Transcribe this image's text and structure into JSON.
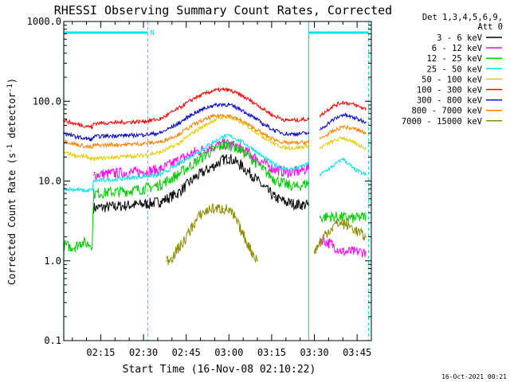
{
  "chart_data": {
    "type": "line",
    "title": "RHESSI Observing Summary Count Rates, Corrected",
    "xlabel": "Start Time (16-Nov-08 02:10:22)",
    "ylabel_main": "Corrected Count Rate (s",
    "ylabel_sup1": "-1",
    "ylabel_mid": " detector",
    "ylabel_sup2": "-1",
    "ylabel_end": ")",
    "y_scale": "log",
    "ylim": [
      0.1,
      1000
    ],
    "y_ticks": [
      {
        "v": 0.1,
        "label": "0.1"
      },
      {
        "v": 1,
        "label": "1.0"
      },
      {
        "v": 10,
        "label": "10.0"
      },
      {
        "v": 100,
        "label": "100.0"
      },
      {
        "v": 1000,
        "label": "1000.0"
      }
    ],
    "xlim": [
      122,
      230
    ],
    "x_ticks": [
      {
        "t": 135,
        "label": "02:15"
      },
      {
        "t": 150,
        "label": "02:30"
      },
      {
        "t": 165,
        "label": "02:45"
      },
      {
        "t": 180,
        "label": "03:00"
      },
      {
        "t": 195,
        "label": "03:15"
      },
      {
        "t": 210,
        "label": "03:30"
      },
      {
        "t": 225,
        "label": "03:45"
      }
    ],
    "legend_header": [
      "Det 1,3,4,5,6,9,",
      "Att 0"
    ],
    "legend_position": "right",
    "series": [
      {
        "name": "3 - 6 keV",
        "color": "#000000",
        "x": [
          122,
          132,
          132.5,
          140,
          146,
          150,
          156,
          162,
          168,
          174,
          178,
          180,
          184,
          188,
          192,
          196,
          200,
          204,
          208,
          208.5,
          212,
          216,
          220,
          224,
          228
        ],
        "values": [
          null,
          null,
          4.6,
          4.8,
          5.0,
          5.1,
          5.5,
          7.0,
          11,
          15,
          18.5,
          19.5,
          16,
          12,
          8.5,
          6.3,
          5.4,
          5.1,
          5.0,
          null,
          null,
          null,
          null,
          null,
          null
        ]
      },
      {
        "name": "6 - 12 keV",
        "color": "#ff00ff",
        "x": [
          122,
          132,
          132.5,
          140,
          146,
          150,
          156,
          162,
          168,
          174,
          178,
          180,
          184,
          188,
          192,
          196,
          200,
          204,
          208,
          208.5,
          212,
          216,
          220,
          224,
          228
        ],
        "values": [
          null,
          null,
          12,
          12.5,
          12.8,
          13,
          14,
          18,
          23,
          27,
          29,
          29,
          26,
          21,
          17,
          14,
          13,
          13,
          14.5,
          null,
          1.9,
          1.6,
          1.3,
          1.3,
          1.3
        ]
      },
      {
        "name": "12 - 25 keV",
        "color": "#00cc00",
        "x": [
          122,
          124,
          126,
          128,
          132,
          132.5,
          140,
          146,
          150,
          156,
          162,
          168,
          174,
          178,
          180,
          184,
          188,
          192,
          196,
          200,
          204,
          208,
          208.5,
          212,
          216,
          220,
          224,
          228
        ],
        "values": [
          1.6,
          1.5,
          1.5,
          1.7,
          1.6,
          7,
          7.3,
          7.6,
          8,
          9,
          12,
          17,
          24,
          28,
          28.5,
          25,
          19,
          14,
          10.5,
          9,
          8.5,
          9.5,
          null,
          3.5,
          3.6,
          3.5,
          3.4,
          3.6
        ]
      },
      {
        "name": "25 - 50 keV",
        "color": "#00e5e5",
        "x": [
          122,
          126,
          130,
          132,
          132.5,
          140,
          146,
          150,
          156,
          162,
          168,
          174,
          178,
          180,
          184,
          188,
          192,
          196,
          200,
          204,
          208,
          208.5,
          212,
          216,
          220,
          224,
          228
        ],
        "values": [
          8,
          7.8,
          7.5,
          7.8,
          10,
          10.5,
          11,
          11.5,
          12,
          16,
          22,
          30,
          36,
          37,
          32,
          26,
          20,
          16,
          14,
          14.5,
          16.5,
          null,
          12,
          15,
          19,
          14,
          12
        ]
      },
      {
        "name": "50 - 100 keV",
        "color": "#e5cc00",
        "x": [
          122,
          126,
          130,
          132,
          132.5,
          140,
          146,
          150,
          156,
          162,
          168,
          174,
          178,
          180,
          184,
          188,
          192,
          196,
          200,
          204,
          208,
          208.5,
          212,
          216,
          220,
          224,
          228
        ],
        "values": [
          23,
          21,
          20,
          19,
          19,
          20,
          20.5,
          21,
          23,
          29,
          42,
          56,
          64,
          63,
          55,
          45,
          36,
          29,
          26,
          26,
          28,
          null,
          26,
          31,
          35,
          30,
          26
        ]
      },
      {
        "name": "100 - 300 keV",
        "color": "#ff0000",
        "x": [
          122,
          126,
          130,
          132,
          132.5,
          140,
          146,
          150,
          156,
          162,
          168,
          174,
          178,
          180,
          184,
          188,
          192,
          196,
          200,
          204,
          208,
          208.5,
          212,
          216,
          220,
          224,
          228
        ],
        "values": [
          58,
          52,
          49,
          47,
          53,
          54,
          55,
          56,
          60,
          80,
          110,
          135,
          140,
          138,
          120,
          100,
          80,
          65,
          58,
          58,
          60,
          null,
          66,
          85,
          98,
          90,
          80
        ]
      },
      {
        "name": "300 - 800 keV",
        "color": "#0000cc",
        "x": [
          122,
          126,
          130,
          132,
          132.5,
          140,
          146,
          150,
          156,
          162,
          168,
          174,
          178,
          180,
          184,
          188,
          192,
          196,
          200,
          204,
          208,
          208.5,
          212,
          216,
          220,
          224,
          228
        ],
        "values": [
          40,
          36,
          34,
          33,
          36,
          37,
          37.5,
          38,
          40,
          52,
          72,
          88,
          92,
          90,
          80,
          65,
          52,
          43,
          39,
          39,
          40,
          null,
          44,
          57,
          68,
          62,
          55
        ]
      },
      {
        "name": "800 - 7000 keV",
        "color": "#ff7f00",
        "x": [
          122,
          126,
          130,
          132,
          132.5,
          140,
          146,
          150,
          156,
          162,
          168,
          174,
          178,
          180,
          184,
          188,
          192,
          196,
          200,
          204,
          208,
          208.5,
          212,
          216,
          220,
          224,
          228
        ],
        "values": [
          32,
          29,
          27,
          26,
          28,
          28.5,
          29,
          29.5,
          31,
          38,
          52,
          64,
          67,
          66,
          58,
          48,
          39,
          33,
          30,
          30,
          31,
          null,
          34,
          41,
          48,
          45,
          40
        ]
      },
      {
        "name": "7000 - 15000 keV",
        "color": "#8b8b00",
        "x": [
          150,
          154,
          158,
          160,
          162,
          164,
          166,
          168,
          170,
          172,
          174,
          176,
          178,
          180,
          182,
          184,
          186,
          188,
          190,
          194,
          198,
          202,
          206,
          208.5,
          210,
          214,
          218,
          222,
          226,
          228
        ],
        "values": [
          null,
          null,
          1.0,
          1.1,
          1.4,
          1.7,
          2.3,
          3.0,
          3.8,
          4.2,
          4.5,
          4.5,
          4.5,
          4.3,
          3.5,
          2.5,
          1.8,
          1.3,
          1.0,
          null,
          null,
          null,
          null,
          null,
          1.3,
          2.2,
          3.0,
          2.8,
          2.2,
          2.0
        ]
      }
    ],
    "annotations": {
      "night_flag": "N",
      "bar_color": "#00e5e5",
      "date_stamp": "16-Oct-2021 00:21"
    }
  }
}
